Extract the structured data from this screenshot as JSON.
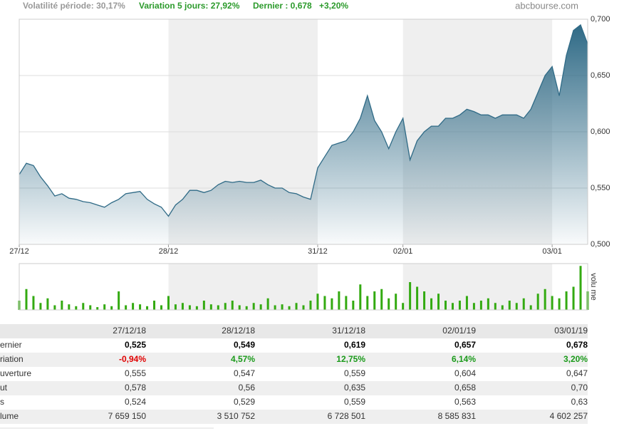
{
  "header": {
    "volatility": "Volatilité période: 30,17%",
    "variation": "Variation 5 jours: 27,92%",
    "last": "Dernier : 0,678",
    "last_change": "+3,20%",
    "site": "abcbourse.com"
  },
  "chart_data": [
    {
      "type": "area",
      "color": "#2f6a86",
      "x": [
        0,
        1,
        2,
        3,
        4,
        5,
        6,
        7,
        8,
        9,
        10,
        11,
        12,
        13,
        14,
        15,
        16,
        17,
        18,
        19,
        20,
        21,
        22,
        23,
        24,
        25,
        26,
        27,
        28,
        29,
        30,
        31,
        32,
        33,
        34,
        35,
        36,
        37,
        38,
        39,
        40,
        41,
        42,
        43,
        44,
        45,
        46,
        47,
        48,
        49,
        50,
        51,
        52,
        53,
        54,
        55,
        56,
        57,
        58,
        59,
        60,
        61,
        62,
        63,
        64,
        65,
        66,
        67,
        68,
        69,
        70,
        71,
        72,
        73,
        74,
        75,
        76,
        77,
        78,
        79,
        80
      ],
      "values": [
        0.562,
        0.572,
        0.57,
        0.56,
        0.552,
        0.543,
        0.545,
        0.541,
        0.54,
        0.538,
        0.537,
        0.535,
        0.533,
        0.537,
        0.54,
        0.545,
        0.546,
        0.547,
        0.54,
        0.536,
        0.533,
        0.525,
        0.535,
        0.54,
        0.548,
        0.548,
        0.546,
        0.548,
        0.553,
        0.556,
        0.555,
        0.556,
        0.555,
        0.555,
        0.557,
        0.553,
        0.55,
        0.55,
        0.546,
        0.545,
        0.542,
        0.54,
        0.568,
        0.578,
        0.588,
        0.59,
        0.592,
        0.6,
        0.612,
        0.632,
        0.61,
        0.6,
        0.585,
        0.6,
        0.612,
        0.575,
        0.592,
        0.6,
        0.605,
        0.605,
        0.612,
        0.612,
        0.615,
        0.62,
        0.618,
        0.615,
        0.615,
        0.612,
        0.615,
        0.615,
        0.615,
        0.612,
        0.62,
        0.635,
        0.65,
        0.658,
        0.632,
        0.668,
        0.69,
        0.695,
        0.678
      ],
      "xlim": [
        0,
        80
      ],
      "xticks": [
        {
          "value": 0,
          "label": "27/12"
        },
        {
          "value": 21,
          "label": "28/12"
        },
        {
          "value": 42,
          "label": "31/12"
        },
        {
          "value": 54,
          "label": "02/01"
        },
        {
          "value": 75,
          "label": "03/01"
        }
      ],
      "ylim": [
        0.5,
        0.7
      ],
      "yticks": [
        {
          "value": 0.5,
          "label": "0,500"
        },
        {
          "value": 0.55,
          "label": "0,550"
        },
        {
          "value": 0.6,
          "label": "0,600"
        },
        {
          "value": 0.65,
          "label": "0,650"
        },
        {
          "value": 0.7,
          "label": "0,700"
        }
      ],
      "grid": true
    },
    {
      "type": "bar",
      "color": "#33aa11",
      "y_label": "volu me",
      "x": [
        0,
        1,
        2,
        3,
        4,
        5,
        6,
        7,
        8,
        9,
        10,
        11,
        12,
        13,
        14,
        15,
        16,
        17,
        18,
        19,
        20,
        21,
        22,
        23,
        24,
        25,
        26,
        27,
        28,
        29,
        30,
        31,
        32,
        33,
        34,
        35,
        36,
        37,
        38,
        39,
        40,
        41,
        42,
        43,
        44,
        45,
        46,
        47,
        48,
        49,
        50,
        51,
        52,
        53,
        54,
        55,
        56,
        57,
        58,
        59,
        60,
        61,
        62,
        63,
        64,
        65,
        66,
        67,
        68,
        69,
        70,
        71,
        72,
        73,
        74,
        75,
        76,
        77,
        78,
        79,
        80
      ],
      "values": [
        20,
        45,
        30,
        15,
        25,
        10,
        20,
        12,
        8,
        15,
        10,
        6,
        12,
        8,
        40,
        10,
        15,
        12,
        8,
        20,
        10,
        30,
        12,
        15,
        10,
        8,
        20,
        12,
        10,
        15,
        20,
        10,
        8,
        15,
        12,
        25,
        10,
        12,
        8,
        15,
        10,
        20,
        35,
        30,
        25,
        40,
        30,
        20,
        55,
        30,
        40,
        45,
        25,
        35,
        15,
        60,
        50,
        40,
        25,
        35,
        20,
        15,
        20,
        30,
        15,
        20,
        25,
        15,
        10,
        20,
        15,
        25,
        10,
        35,
        45,
        30,
        25,
        40,
        50,
        95,
        40
      ],
      "xlim": [
        0,
        80
      ],
      "ylim": [
        0,
        100
      ]
    }
  ],
  "table": {
    "header": [
      "27/12/18",
      "28/12/18",
      "31/12/18",
      "02/01/19",
      "03/01/19"
    ],
    "rows": [
      {
        "label": "ernier",
        "cells": [
          "0,525",
          "0,549",
          "0,619",
          "0,657",
          "0,678"
        ]
      },
      {
        "label": "riation",
        "cells": [
          "-0,94%",
          "4,57%",
          "12,75%",
          "6,14%",
          "3,20%"
        ]
      },
      {
        "label": "uverture",
        "cells": [
          "0,555",
          "0,547",
          "0,559",
          "0,604",
          "0,647"
        ]
      },
      {
        "label": "ut",
        "cells": [
          "0,578",
          "0,56",
          "0,635",
          "0,658",
          "0,70"
        ]
      },
      {
        "label": "s",
        "cells": [
          "0,524",
          "0,529",
          "0,559",
          "0,563",
          "0,63"
        ]
      },
      {
        "label": "lume",
        "cells": [
          "7 659 150",
          "3 510 752",
          "6 728 501",
          "8 585 831",
          "4 602 257"
        ]
      }
    ]
  }
}
